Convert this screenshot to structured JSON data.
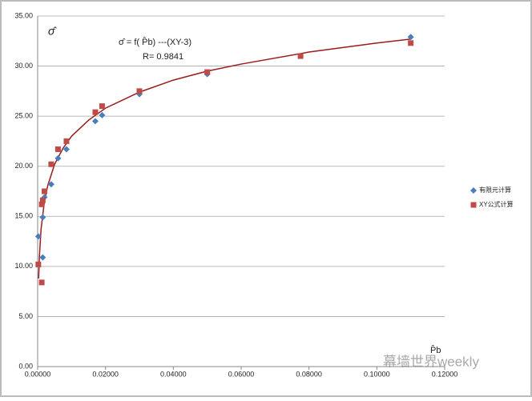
{
  "chart_data": {
    "type": "scatter",
    "ylabel": "σ̂",
    "xlabel": "P̂b",
    "annotations": [
      "σ̂ = f( P̂b) ---(XY-3)",
      "R= 0.9841"
    ],
    "watermark": "幕墙世界weekly",
    "xlim": [
      0,
      0.12
    ],
    "ylim": [
      0,
      35
    ],
    "xticks": [
      {
        "value": 0,
        "label": "0.00000"
      },
      {
        "value": 0.02,
        "label": "0.02000"
      },
      {
        "value": 0.04,
        "label": "0.04000"
      },
      {
        "value": 0.06,
        "label": "0.06000"
      },
      {
        "value": 0.08,
        "label": "0.08000"
      },
      {
        "value": 0.1,
        "label": "0.10000"
      },
      {
        "value": 0.12,
        "label": "0.12000"
      }
    ],
    "yticks": [
      {
        "value": 0,
        "label": "0.00"
      },
      {
        "value": 5,
        "label": "5.00"
      },
      {
        "value": 10,
        "label": "10.00"
      },
      {
        "value": 15,
        "label": "15.00"
      },
      {
        "value": 20,
        "label": "20.00"
      },
      {
        "value": 25,
        "label": "25.00"
      },
      {
        "value": 30,
        "label": "30.00"
      },
      {
        "value": 35,
        "label": "35.00"
      }
    ],
    "grid": true,
    "legend": "right",
    "series": [
      {
        "name": "有限元计算",
        "color": "#4a7ebb",
        "marker": "diamond",
        "x": [
          0.0002,
          0.0015,
          0.0015,
          0.002,
          0.004,
          0.006,
          0.0085,
          0.017,
          0.019,
          0.03,
          0.05,
          0.11
        ],
        "values": [
          13.0,
          10.9,
          14.9,
          16.9,
          18.2,
          20.8,
          21.7,
          24.5,
          25.1,
          27.2,
          29.2,
          32.9
        ]
      },
      {
        "name": "XY公式计算",
        "color": "#be4b48",
        "marker": "square",
        "x": [
          0.0002,
          0.0012,
          0.0012,
          0.0015,
          0.002,
          0.004,
          0.006,
          0.0085,
          0.017,
          0.019,
          0.03,
          0.05,
          0.0775,
          0.11
        ],
        "values": [
          10.2,
          8.4,
          16.2,
          16.6,
          17.5,
          20.2,
          21.7,
          22.5,
          25.4,
          26.0,
          27.5,
          29.4,
          31.0,
          32.3
        ]
      }
    ],
    "fit": {
      "color": "#9b1c1c",
      "x": [
        0.0003,
        0.0005,
        0.001,
        0.002,
        0.003,
        0.005,
        0.0075,
        0.01,
        0.015,
        0.02,
        0.03,
        0.04,
        0.05,
        0.06,
        0.08,
        0.1,
        0.11
      ],
      "values": [
        8.8,
        10.9,
        13.7,
        16.5,
        18.1,
        20.2,
        21.8,
        23.0,
        24.6,
        25.8,
        27.4,
        28.6,
        29.5,
        30.2,
        31.4,
        32.3,
        32.7
      ]
    }
  }
}
